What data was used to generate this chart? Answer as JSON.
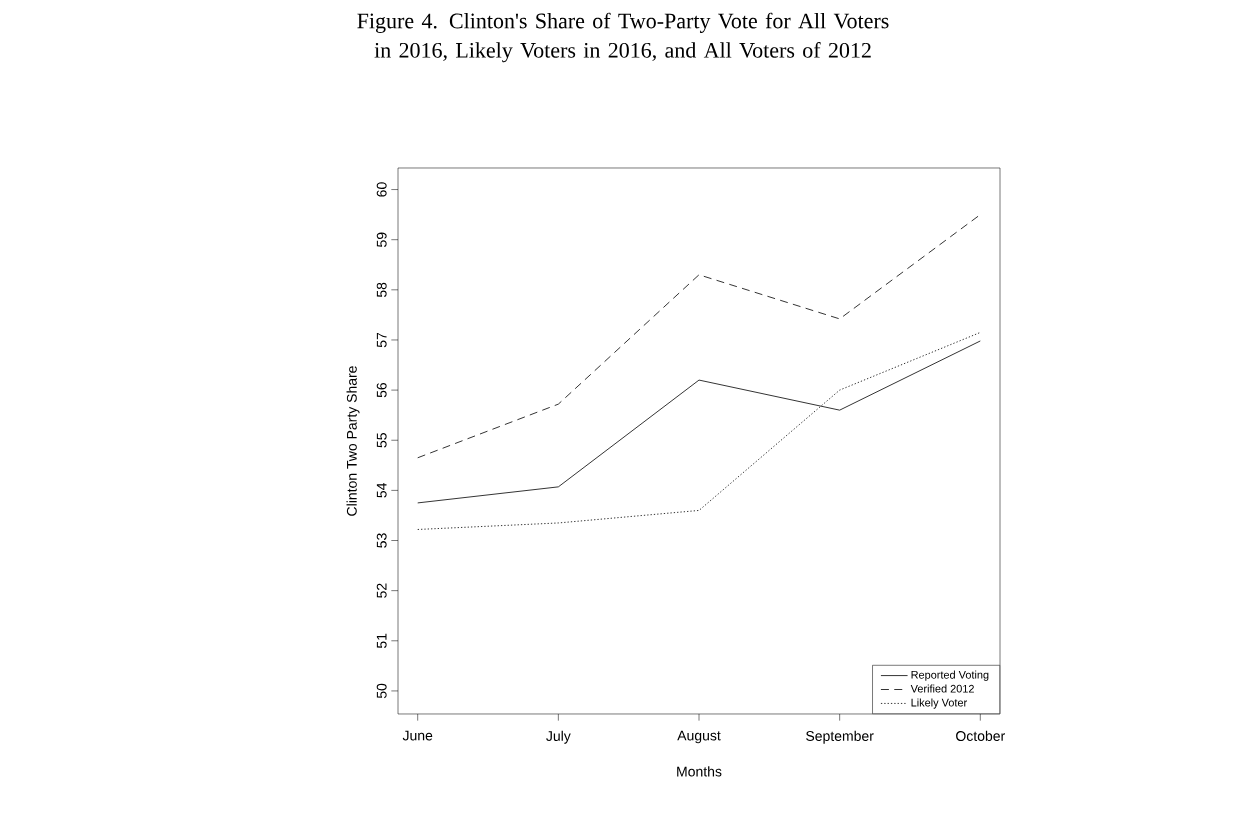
{
  "chart_data": {
    "type": "line",
    "title": "Figure 4. Clinton's Share of Two-Party Vote for All Voters in 2016, Likely Voters in 2016, and All Voters of 2012",
    "xlabel": "Months",
    "ylabel": "Clinton Two Party Share",
    "categories": [
      "June",
      "July",
      "August",
      "September",
      "October"
    ],
    "series": [
      {
        "name": "Reported Voting",
        "color": "#000000",
        "line_style": "solid",
        "values": [
          53.75,
          54.07,
          56.2,
          55.6,
          56.98
        ]
      },
      {
        "name": "Verified 2012",
        "color": "#000000",
        "line_style": "dashed",
        "values": [
          54.65,
          55.72,
          58.3,
          57.42,
          59.5
        ]
      },
      {
        "name": "Likely Voter",
        "color": "#000000",
        "line_style": "dotted",
        "values": [
          53.22,
          53.35,
          53.6,
          56.0,
          57.15
        ]
      }
    ],
    "ylim": [
      49.54,
      60.43
    ],
    "yticks": [
      50,
      51,
      52,
      53,
      54,
      55,
      56,
      57,
      58,
      59,
      60
    ],
    "grid": false,
    "legend": "bottom right",
    "marker": "none"
  }
}
